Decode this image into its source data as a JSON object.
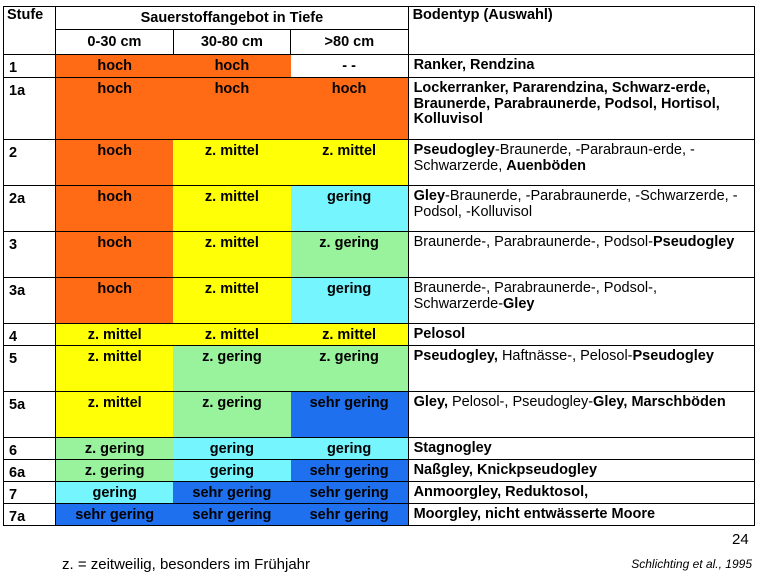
{
  "colors": {
    "hoch": "#ff6a14",
    "z_mittel": "#ffff05",
    "z_gering": "#99f29c",
    "gering": "#75f6ff",
    "sehr_gering": "#1f70ee",
    "none": "#ffffff"
  },
  "header": {
    "stufe": "Stufe",
    "sauerstoff": "Sauerstoffangebot in Tiefe",
    "bodentyp": "Bodentyp (Auswahl)",
    "depths": [
      "0-30 cm",
      "30-80 cm",
      ">80 cm"
    ]
  },
  "rows": [
    {
      "stufe": "1",
      "o": [
        [
          "hoch",
          "hoch"
        ],
        [
          "hoch",
          "hoch"
        ],
        [
          "- -",
          "none"
        ]
      ],
      "typ": [
        [
          "Ranker, Rendzina",
          true
        ]
      ]
    },
    {
      "stufe": "1a",
      "o": [
        [
          "hoch",
          "hoch"
        ],
        [
          "hoch",
          "hoch"
        ],
        [
          "hoch",
          "hoch"
        ]
      ],
      "typ": [
        [
          "Lockerranker, Pararendzina, Schwarz-erde, Braunerde, Parabraunerde, Podsol, Hortisol, Kolluvisol",
          true
        ]
      ]
    },
    {
      "stufe": "2",
      "o": [
        [
          "hoch",
          "hoch"
        ],
        [
          "z. mittel",
          "z_mittel"
        ],
        [
          "z. mittel",
          "z_mittel"
        ]
      ],
      "typ": [
        [
          "Pseudogley",
          true
        ],
        [
          "-Braunerde, -Parabraun-erde, -Schwarzerde, ",
          false
        ],
        [
          "Auenböden",
          true
        ]
      ]
    },
    {
      "stufe": "2a",
      "o": [
        [
          "hoch",
          "hoch"
        ],
        [
          "z. mittel",
          "z_mittel"
        ],
        [
          "gering",
          "gering"
        ]
      ],
      "typ": [
        [
          "Gley",
          true
        ],
        [
          "-Braunerde, -Parabraunerde, -Schwarzerde, -Podsol, -Kolluvisol",
          false
        ]
      ]
    },
    {
      "stufe": "3",
      "o": [
        [
          "hoch",
          "hoch"
        ],
        [
          "z. mittel",
          "z_mittel"
        ],
        [
          "z. gering",
          "z_gering"
        ]
      ],
      "typ": [
        [
          "Braunerde-, Parabraunerde-, Podsol-",
          false
        ],
        [
          "Pseudogley",
          true
        ]
      ]
    },
    {
      "stufe": "3a",
      "o": [
        [
          "hoch",
          "hoch"
        ],
        [
          "z. mittel",
          "z_mittel"
        ],
        [
          "gering",
          "gering"
        ]
      ],
      "typ": [
        [
          "Braunerde-, Parabraunerde-, Podsol-, Schwarzerde-",
          false
        ],
        [
          "Gley",
          true
        ]
      ]
    },
    {
      "stufe": "4",
      "o": [
        [
          "z. mittel",
          "z_mittel"
        ],
        [
          "z. mittel",
          "z_mittel"
        ],
        [
          "z. mittel",
          "z_mittel"
        ]
      ],
      "typ": [
        [
          "Pelosol",
          true
        ]
      ]
    },
    {
      "stufe": "5",
      "o": [
        [
          "z. mittel",
          "z_mittel"
        ],
        [
          "z. gering",
          "z_gering"
        ],
        [
          "z. gering",
          "z_gering"
        ]
      ],
      "typ": [
        [
          "Pseudogley,",
          true
        ],
        [
          " Haftnässe-, Pelosol-",
          false
        ],
        [
          "Pseudogley",
          true
        ]
      ]
    },
    {
      "stufe": "5a",
      "o": [
        [
          "z. mittel",
          "z_mittel"
        ],
        [
          "z. gering",
          "z_gering"
        ],
        [
          "sehr gering",
          "sehr_gering"
        ]
      ],
      "typ": [
        [
          "Gley,",
          true
        ],
        [
          " Pelosol-, Pseudogley-",
          false
        ],
        [
          "Gley, Marschböden",
          true
        ]
      ]
    },
    {
      "stufe": "6",
      "o": [
        [
          "z. gering",
          "z_gering"
        ],
        [
          "gering",
          "gering"
        ],
        [
          "gering",
          "gering"
        ]
      ],
      "typ": [
        [
          "Stagnogley",
          true
        ]
      ]
    },
    {
      "stufe": "6a",
      "o": [
        [
          "z. gering",
          "z_gering"
        ],
        [
          "gering",
          "gering"
        ],
        [
          "sehr gering",
          "sehr_gering"
        ]
      ],
      "typ": [
        [
          "Naßgley, Knickpseudogley",
          true
        ]
      ]
    },
    {
      "stufe": "7",
      "o": [
        [
          "gering",
          "gering"
        ],
        [
          "sehr gering",
          "sehr_gering"
        ],
        [
          "sehr gering",
          "sehr_gering"
        ]
      ],
      "typ": [
        [
          "Anmoorgley, Reduktosol,",
          true
        ]
      ]
    },
    {
      "stufe": "7a",
      "o": [
        [
          "sehr gering",
          "sehr_gering"
        ],
        [
          "sehr gering",
          "sehr_gering"
        ],
        [
          "sehr gering",
          "sehr_gering"
        ]
      ],
      "typ": [
        [
          "Moorgley, nicht entwässerte Moore",
          true
        ]
      ]
    }
  ],
  "footnote": "z. = zeitweilig, besonders im Frühjahr",
  "citation": "Schlichting et al., 1995",
  "page_number": "24"
}
